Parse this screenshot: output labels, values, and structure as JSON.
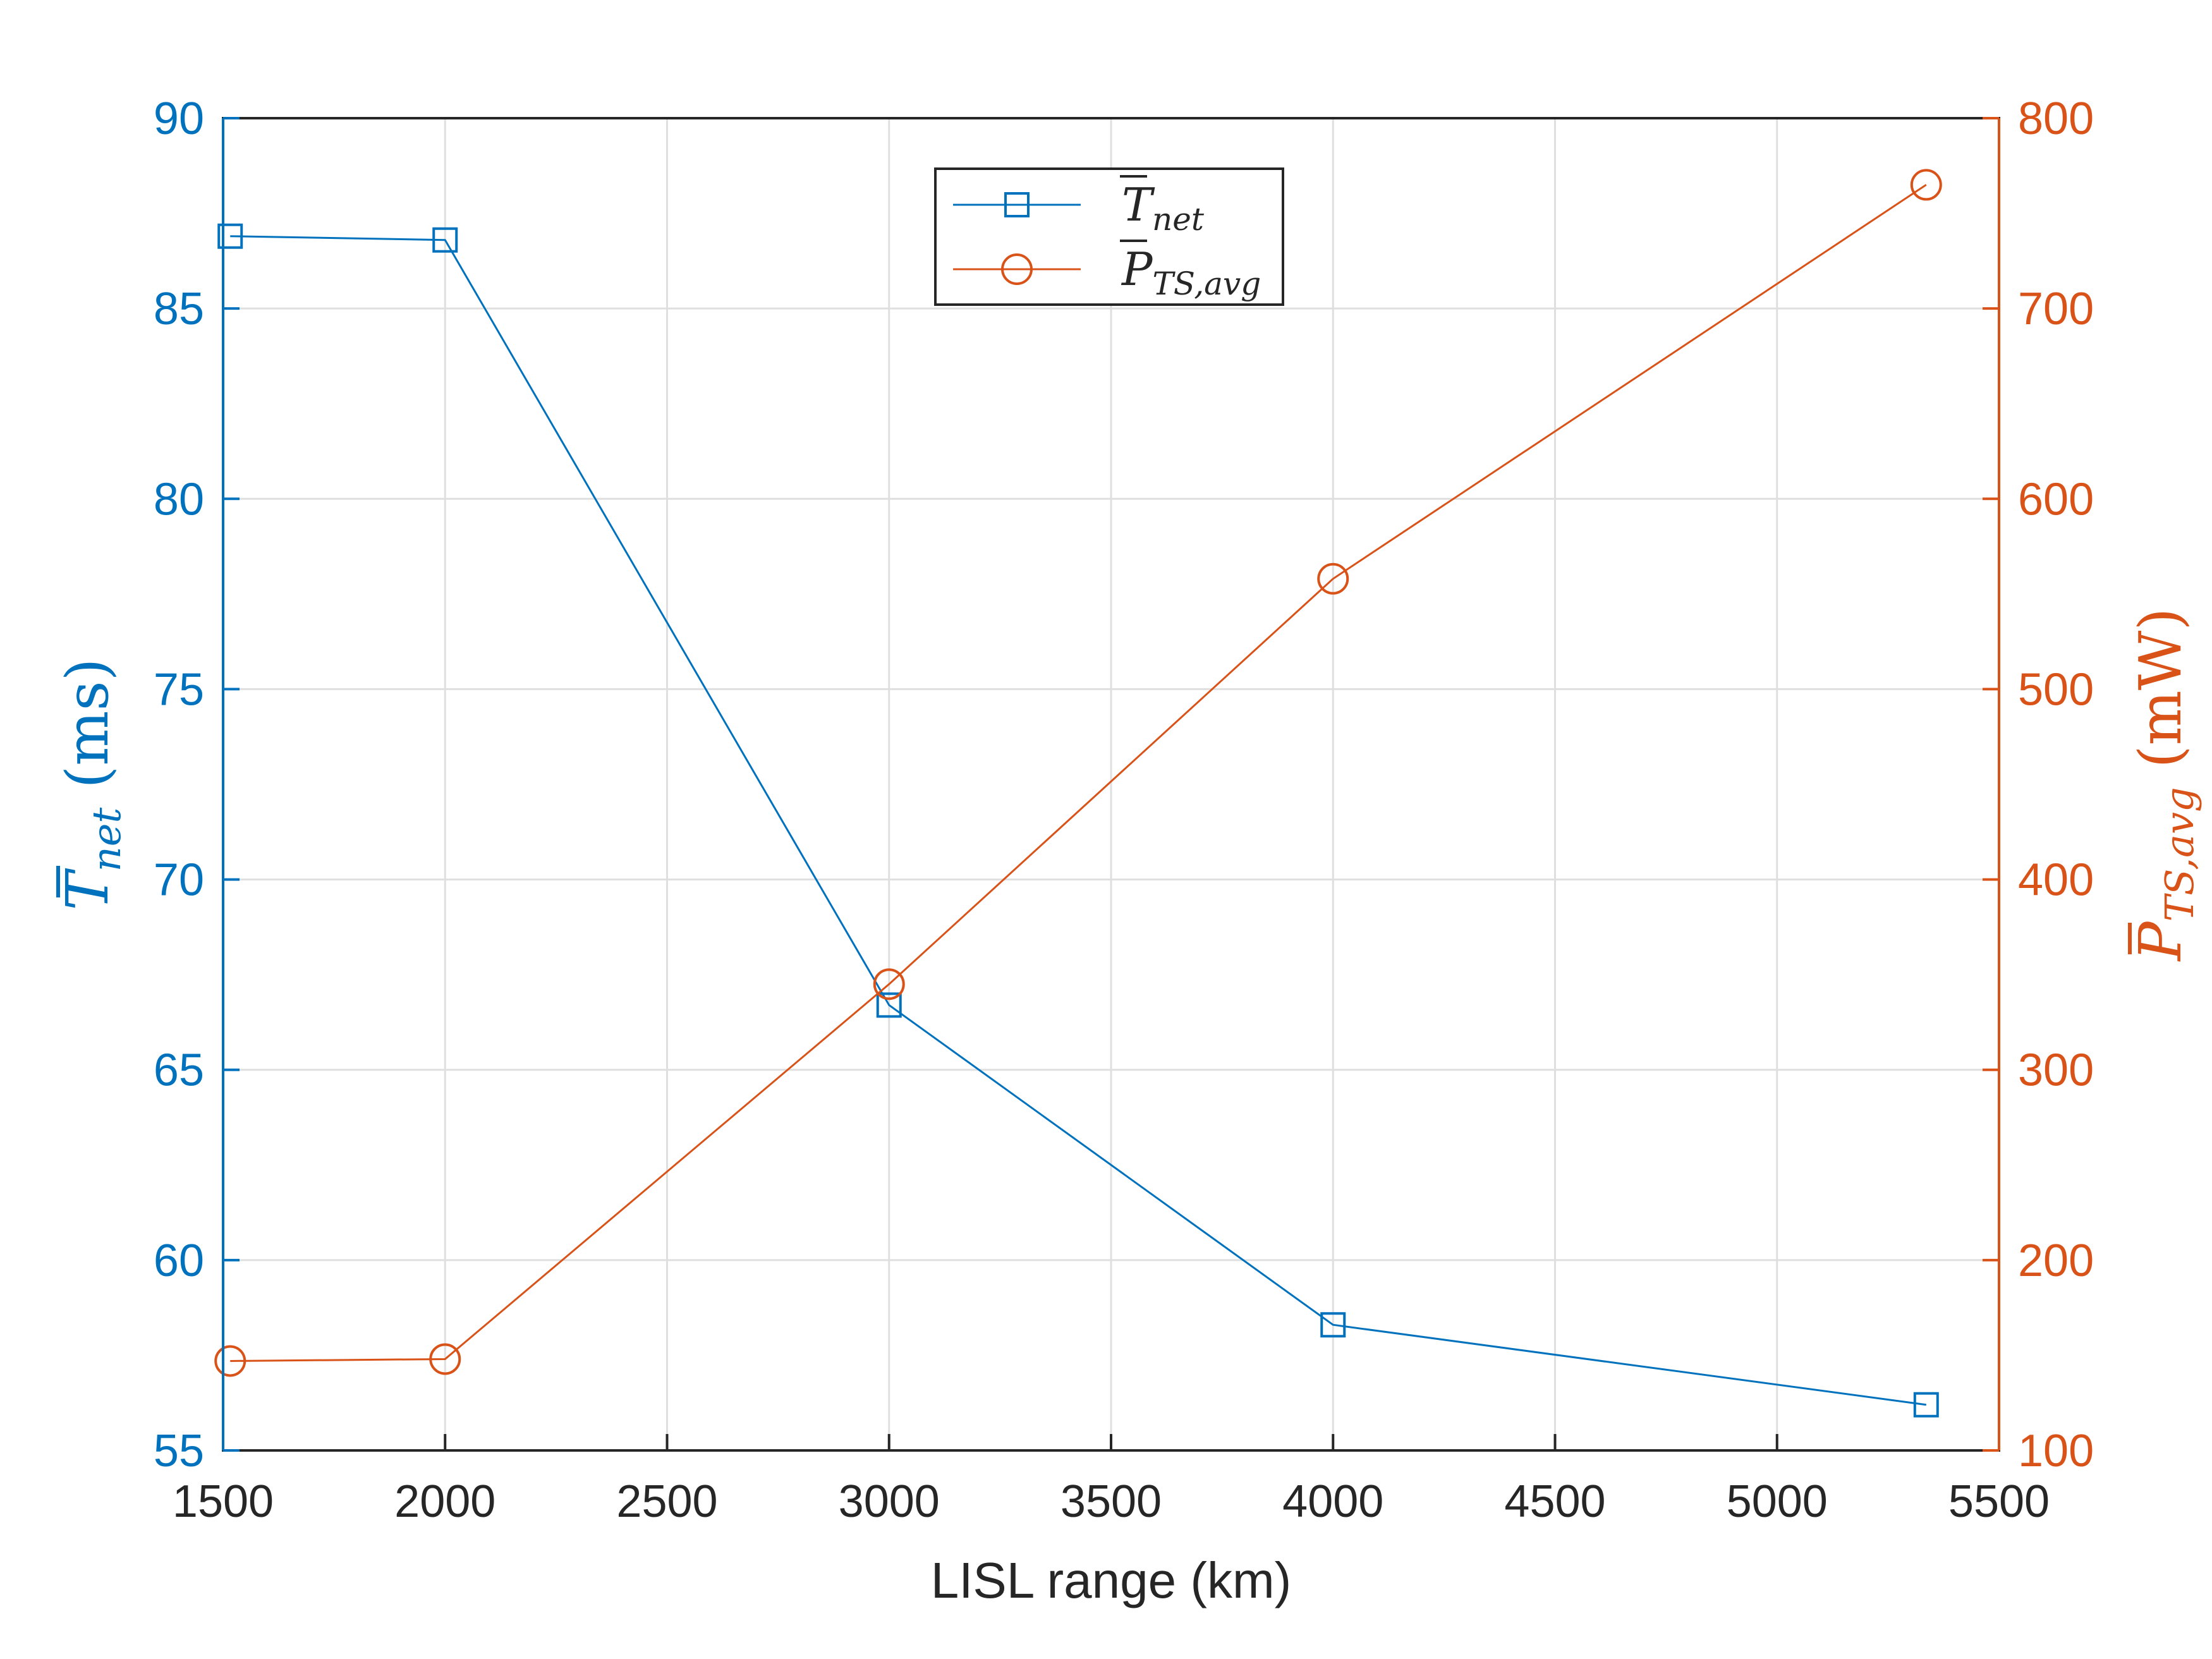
{
  "chart_data": {
    "type": "line",
    "xlabel": "LISL range (km)",
    "ylabel_left": {
      "symbol": "T",
      "sub": "net",
      "unit": "(ms)"
    },
    "ylabel_right": {
      "symbol": "P",
      "sub": "TS,avg",
      "unit": "(mW)"
    },
    "xlim": [
      1500,
      5500
    ],
    "ylim_left": [
      55,
      90
    ],
    "ylim_right": [
      100,
      800
    ],
    "x_ticks": [
      1500,
      2000,
      2500,
      3000,
      3500,
      4000,
      4500,
      5000,
      5500
    ],
    "y_left_ticks": [
      55,
      60,
      65,
      70,
      75,
      80,
      85,
      90
    ],
    "y_right_ticks": [
      100,
      200,
      300,
      400,
      500,
      600,
      700,
      800
    ],
    "grid": true,
    "legend_position": "top-center",
    "series": [
      {
        "name_symbol": "T",
        "name_sub": "net",
        "axis": "left",
        "marker": "square",
        "color": "#0072BD",
        "x": [
          1516,
          2000,
          3000,
          4000,
          5336
        ],
        "y": [
          86.9,
          86.8,
          66.7,
          58.3,
          56.2
        ]
      },
      {
        "name_symbol": "P",
        "name_sub": "TS,avg",
        "axis": "right",
        "marker": "circle",
        "color": "#D95319",
        "x": [
          1516,
          2000,
          3000,
          4000,
          5336
        ],
        "y": [
          147,
          148,
          345,
          558,
          765
        ]
      }
    ]
  }
}
